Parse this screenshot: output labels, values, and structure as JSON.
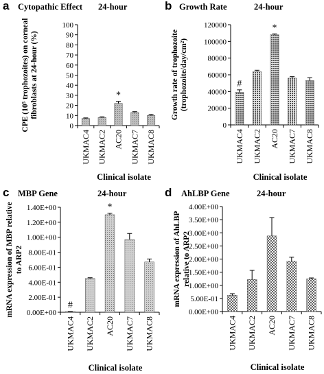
{
  "chart_data": [
    {
      "type": "bar",
      "panel_letter": "a",
      "title": "Cytopathic Effect",
      "subtitle": "24-hour",
      "ylabel_lines": [
        "CPE (10⁵ trophozoites) on corneal",
        "fibroblasts at 24-hour (%)"
      ],
      "xlabel": "Clinical isolate",
      "categories": [
        "UKMAC4",
        "UKMAC2",
        "AC20",
        "UKMAC7",
        "UKMAC8"
      ],
      "values": [
        7,
        8,
        22,
        13,
        10
      ],
      "errors": [
        0.6,
        0.7,
        2.0,
        0.8,
        1.0
      ],
      "annotations": [
        "",
        "",
        "*",
        "",
        ""
      ],
      "ylim": [
        0,
        100
      ],
      "yticks": [
        0,
        10,
        20,
        30,
        40,
        50,
        60,
        70,
        80,
        90,
        100
      ],
      "ytick_labels": [
        "0",
        "10",
        "20",
        "30",
        "40",
        "50",
        "60",
        "70",
        "80",
        "90",
        "100"
      ],
      "grid": false,
      "bar_color": "#bdbdbd",
      "pattern": "dots"
    },
    {
      "type": "bar",
      "panel_letter": "b",
      "title": "Growth Rate",
      "subtitle": "24-hour",
      "ylabel_lines": [
        "Growth  rate of trophozoite",
        "(trophozoite/day/cm²)"
      ],
      "xlabel": "Clinical isolate",
      "categories": [
        "UKMAC4",
        "UKMAC2",
        "AC20",
        "UKMAC7",
        "UKMAC8"
      ],
      "values": [
        39000,
        64000,
        108000,
        56000,
        53000
      ],
      "errors": [
        3000,
        1500,
        1000,
        1800,
        3500
      ],
      "annotations": [
        "#",
        "",
        "*",
        "",
        ""
      ],
      "ylim": [
        0,
        120000
      ],
      "yticks": [
        0,
        20000,
        40000,
        60000,
        80000,
        100000,
        120000
      ],
      "ytick_labels": [
        "0",
        "20000",
        "40000",
        "60000",
        "80000",
        "100000",
        "120000"
      ],
      "grid": false,
      "bar_color": "#555555",
      "pattern": "grid"
    },
    {
      "type": "bar",
      "panel_letter": "c",
      "title": "MBP Gene",
      "subtitle": "24-hour",
      "ylabel_lines": [
        "mRNA expression of MBP relative",
        "to ARP2"
      ],
      "xlabel": "Clinical isolate",
      "categories": [
        "UKMAC4",
        "UKMAC2",
        "AC20",
        "UKMAC7",
        "UKMAC8"
      ],
      "values": [
        0.01,
        0.45,
        1.3,
        0.97,
        0.67
      ],
      "errors": [
        0.002,
        0.01,
        0.02,
        0.08,
        0.04
      ],
      "annotations": [
        "#",
        "",
        "*",
        "",
        ""
      ],
      "ylim": [
        0,
        1.4
      ],
      "yticks": [
        0,
        0.2,
        0.4,
        0.6,
        0.8,
        1.0,
        1.2,
        1.4
      ],
      "ytick_labels": [
        "0.00E+00",
        "2.00E-01",
        "4.00E-01",
        "6.00E-01",
        "8.00E-01",
        "1.00E+00",
        "1.20E+00",
        "1.40E+00"
      ],
      "grid": false,
      "bar_color": "#cfcfcf",
      "pattern": "dots"
    },
    {
      "type": "bar",
      "panel_letter": "d",
      "title": "AhLBP Gene",
      "subtitle": "24-hour",
      "ylabel_lines": [
        "mRNA expression of AhLBP",
        "relative to ARP2"
      ],
      "xlabel": "Clinical isolate",
      "categories": [
        "UKMAC4",
        "UKMAC2",
        "AC20",
        "UKMAC7",
        "UKMAC8"
      ],
      "values": [
        0.62,
        1.22,
        2.88,
        1.92,
        1.25
      ],
      "errors": [
        0.06,
        0.35,
        0.7,
        0.15,
        0.03
      ],
      "annotations": [
        "",
        "",
        "",
        "",
        ""
      ],
      "ylim": [
        0,
        4.0
      ],
      "yticks": [
        0,
        0.5,
        1.0,
        1.5,
        2.0,
        2.5,
        3.0,
        3.5,
        4.0
      ],
      "ytick_labels": [
        "0.00E+00",
        "5.00E-01",
        "1.00E+00",
        "1.50E+00",
        "2.00E+00",
        "2.50E+00",
        "3.00E+00",
        "3.50E+00",
        "4.00E+00"
      ],
      "grid": false,
      "bar_color": "#666666",
      "pattern": "checker"
    }
  ]
}
